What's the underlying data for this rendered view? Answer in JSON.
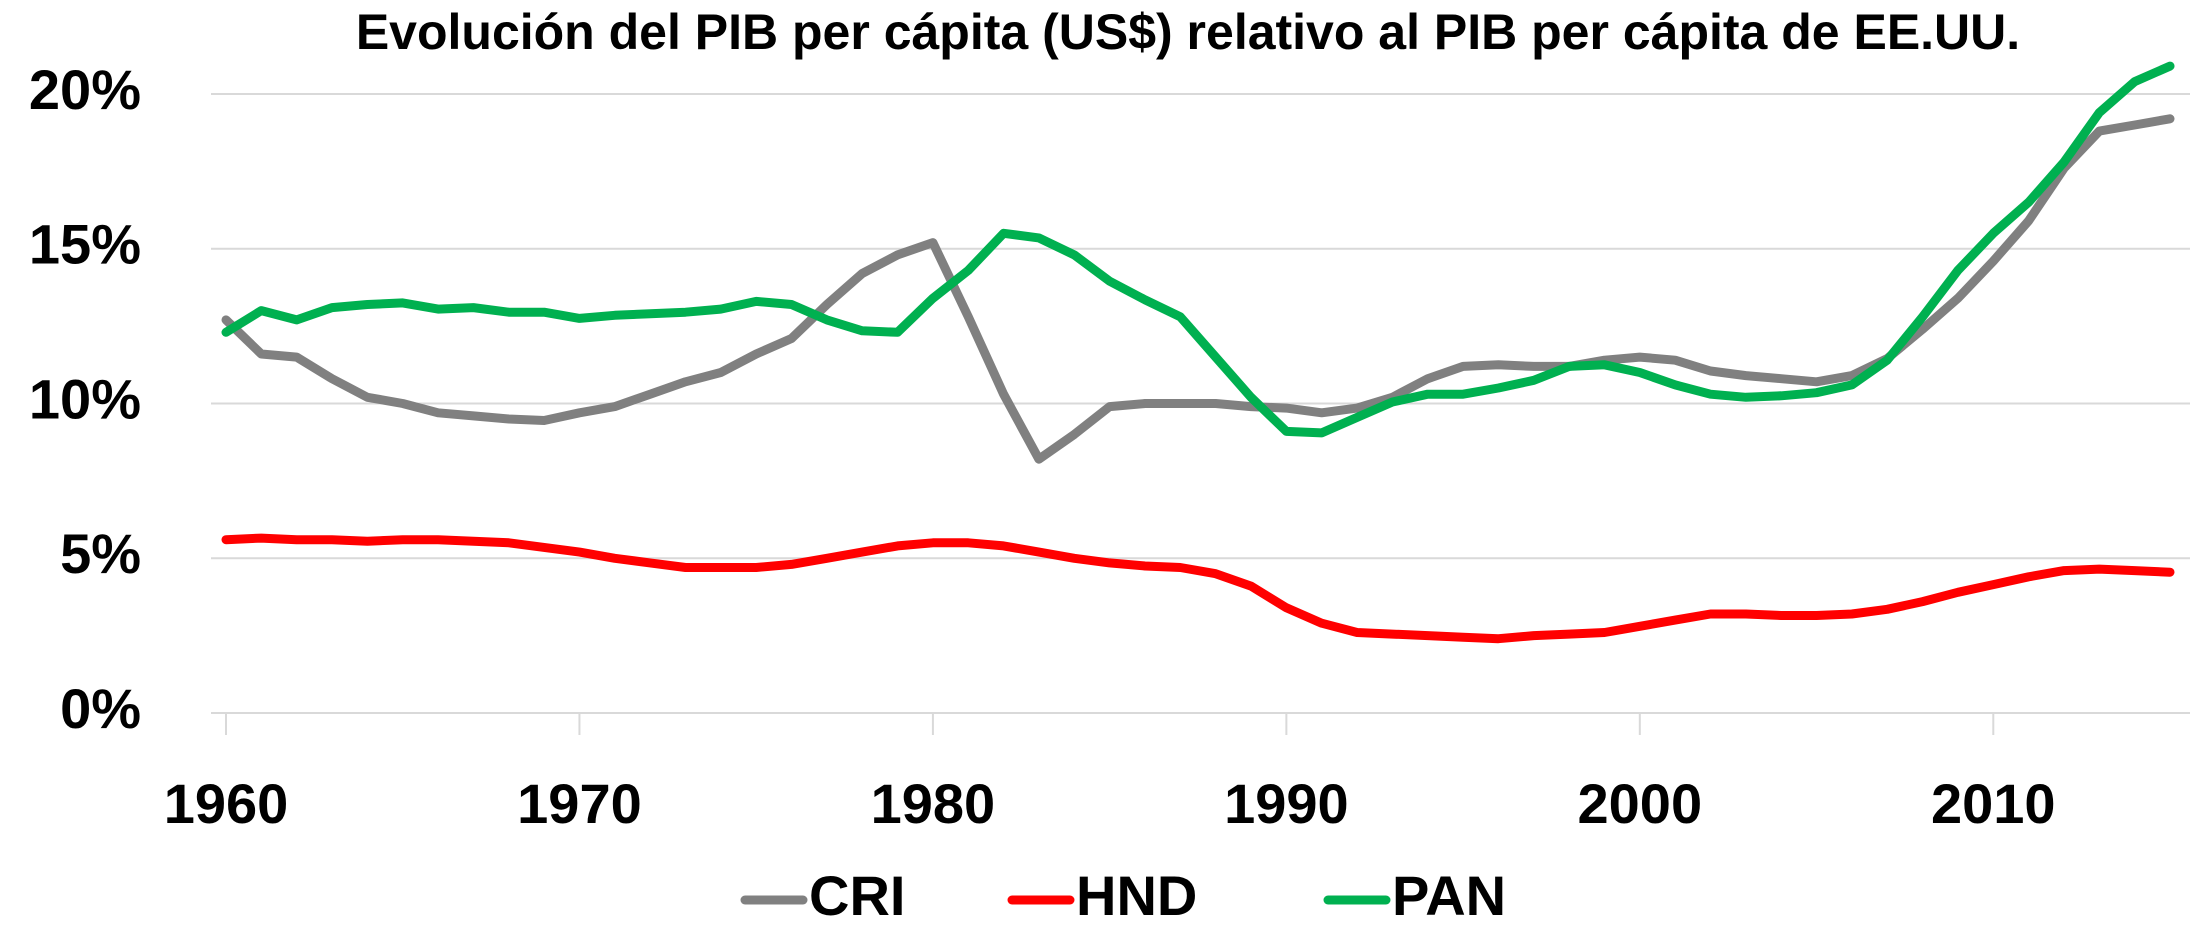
{
  "chart_data": {
    "type": "line",
    "title": "Evolución del PIB per cápita (US$) relativo al PIB per cápita de EE.UU.",
    "x": [
      1960,
      1961,
      1962,
      1963,
      1964,
      1965,
      1966,
      1967,
      1968,
      1969,
      1970,
      1971,
      1972,
      1973,
      1974,
      1975,
      1976,
      1977,
      1978,
      1979,
      1980,
      1981,
      1982,
      1983,
      1984,
      1985,
      1986,
      1987,
      1988,
      1989,
      1990,
      1991,
      1992,
      1993,
      1994,
      1995,
      1996,
      1997,
      1998,
      1999,
      2000,
      2001,
      2002,
      2003,
      2004,
      2005,
      2006,
      2007,
      2008,
      2009,
      2010,
      2011,
      2012,
      2013,
      2014,
      2015
    ],
    "series": [
      {
        "name": "CRI",
        "color": "#808080",
        "values": [
          12.7,
          11.6,
          11.5,
          10.8,
          10.2,
          10.0,
          9.7,
          9.6,
          9.5,
          9.45,
          9.7,
          9.9,
          10.3,
          10.7,
          11.0,
          11.6,
          12.1,
          13.2,
          14.2,
          14.8,
          15.2,
          12.8,
          10.3,
          8.2,
          9.0,
          9.9,
          10.0,
          10.0,
          10.0,
          9.9,
          9.85,
          9.7,
          9.85,
          10.2,
          10.8,
          11.2,
          11.25,
          11.2,
          11.2,
          11.4,
          11.5,
          11.4,
          11.05,
          10.9,
          10.8,
          10.7,
          10.9,
          11.45,
          12.4,
          13.4,
          14.6,
          15.9,
          17.6,
          18.8,
          19.0,
          19.2
        ]
      },
      {
        "name": "HND",
        "color": "#ff0000",
        "values": [
          5.6,
          5.65,
          5.6,
          5.6,
          5.55,
          5.6,
          5.6,
          5.55,
          5.5,
          5.35,
          5.2,
          5.0,
          4.85,
          4.7,
          4.7,
          4.7,
          4.8,
          5.0,
          5.2,
          5.4,
          5.5,
          5.5,
          5.4,
          5.2,
          5.0,
          4.85,
          4.75,
          4.7,
          4.5,
          4.1,
          3.4,
          2.9,
          2.6,
          2.55,
          2.5,
          2.45,
          2.4,
          2.5,
          2.55,
          2.6,
          2.8,
          3.0,
          3.2,
          3.2,
          3.15,
          3.15,
          3.2,
          3.35,
          3.6,
          3.9,
          4.15,
          4.4,
          4.6,
          4.65,
          4.6,
          4.55
        ]
      },
      {
        "name": "PAN",
        "color": "#00b050",
        "values": [
          12.3,
          13.0,
          12.7,
          13.1,
          13.2,
          13.25,
          13.05,
          13.1,
          12.95,
          12.95,
          12.75,
          12.85,
          12.9,
          12.95,
          13.05,
          13.3,
          13.2,
          12.7,
          12.35,
          12.3,
          13.4,
          14.3,
          15.5,
          15.35,
          14.8,
          13.95,
          13.35,
          12.8,
          11.5,
          10.2,
          9.1,
          9.05,
          9.55,
          10.05,
          10.3,
          10.3,
          10.5,
          10.75,
          11.2,
          11.25,
          11.0,
          10.6,
          10.3,
          10.2,
          10.25,
          10.35,
          10.6,
          11.4,
          12.8,
          14.3,
          15.5,
          16.5,
          17.8,
          19.4,
          20.4,
          20.9
        ]
      }
    ],
    "xlim": [
      1960,
      2015
    ],
    "xticks": [
      1960,
      1970,
      1980,
      1990,
      2000,
      2010
    ],
    "ylim": [
      0,
      20
    ],
    "yticks": [
      {
        "value": 0,
        "label": "0%"
      },
      {
        "value": 5,
        "label": "5%"
      },
      {
        "value": 10,
        "label": "10%"
      },
      {
        "value": 15,
        "label": "15%"
      },
      {
        "value": 20,
        "label": "20%"
      }
    ],
    "grid": true,
    "legend": "bottom"
  }
}
